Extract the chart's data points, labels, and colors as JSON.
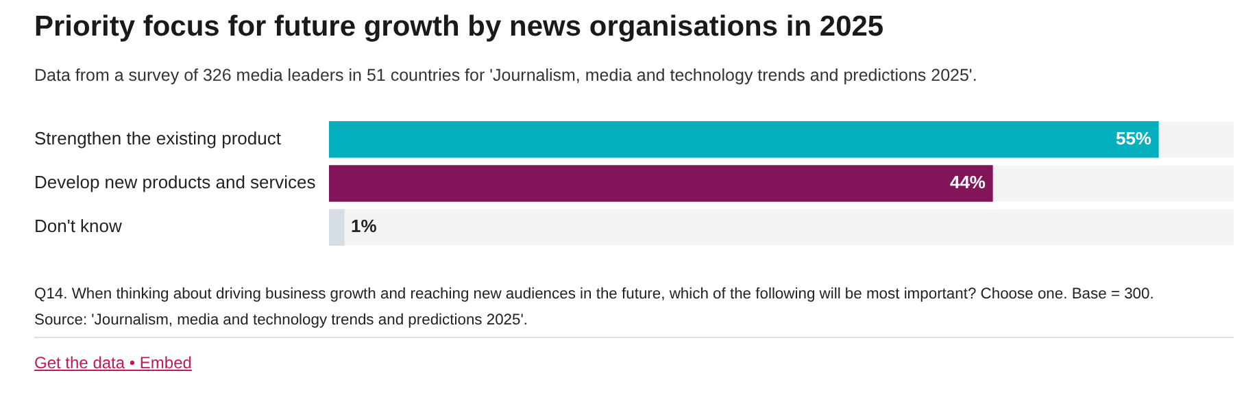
{
  "chart_data": {
    "type": "bar",
    "orientation": "horizontal",
    "title": "Priority focus for future growth by news organisations in 2025",
    "subtitle": "Data from a survey of 326 media leaders in 51 countries for 'Journalism, media and technology trends and predictions 2025'.",
    "categories": [
      "Strengthen the existing product",
      "Develop new products and services",
      "Don't know"
    ],
    "values": [
      55,
      44,
      1
    ],
    "value_labels": [
      "55%",
      "44%",
      "1%"
    ],
    "colors": [
      "#04b0bd",
      "#82145a",
      "#d7dde5"
    ],
    "xlim": [
      0,
      60
    ],
    "tick_labels": "y",
    "legend": false,
    "annotations": [
      "Q14. When thinking about driving business growth and reaching new audiences in the future, which of the following will be most important? Choose one. Base = 300.",
      "Source: 'Journalism, media and technology trends and predictions 2025'.",
      "Get the data • Embed"
    ]
  }
}
